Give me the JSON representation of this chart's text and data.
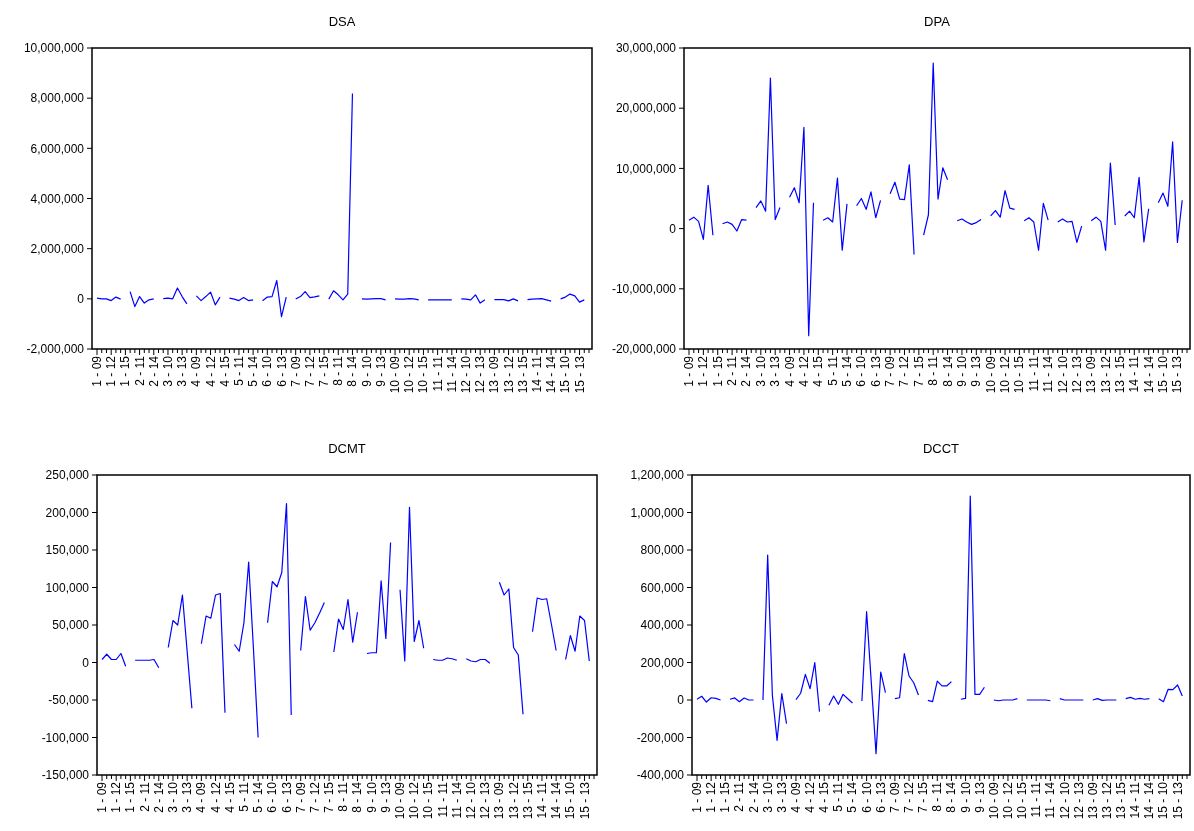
{
  "chart_data": [
    {
      "type": "line",
      "title": "DSA",
      "categories": [
        "1 - 09",
        null,
        null,
        "1 - 12",
        null,
        null,
        "1 - 15",
        null,
        null,
        "2 - 11",
        null,
        null,
        "2 - 14",
        null,
        null,
        "3 - 10",
        null,
        null,
        "3 - 13",
        null,
        null,
        "4 - 09",
        null,
        null,
        "4 - 12",
        null,
        null,
        "4 - 15",
        null,
        null,
        "5 - 11",
        null,
        null,
        "5 - 14",
        null,
        null,
        "6 - 10",
        null,
        null,
        "6 - 13",
        null,
        null,
        "7 - 09",
        null,
        null,
        "7 - 12",
        null,
        null,
        "7 - 15",
        null,
        null,
        "8 - 11",
        null,
        null,
        "8 - 14",
        null,
        null,
        "9 - 10",
        null,
        null,
        "9 - 13",
        null,
        null,
        "10 - 09",
        null,
        null,
        "10 - 12",
        null,
        null,
        "10 - 15",
        null,
        null,
        "11 - 11",
        null,
        null,
        "11 - 14",
        null,
        null,
        "12 - 10",
        null,
        null,
        "12 - 13",
        null,
        null,
        "13 - 09",
        null,
        null,
        "13 - 12",
        null,
        null,
        "13 - 15",
        null,
        null,
        "14 - 11",
        null,
        null,
        "14 - 14",
        null,
        null,
        "15 - 10",
        null,
        null,
        "15 - 13",
        null,
        null
      ],
      "ylim": [
        -2000000,
        10000000
      ],
      "yticks": [
        {
          "value": -2000000,
          "label": "-2,000,000"
        },
        {
          "value": 0,
          "label": "0"
        },
        {
          "value": 2000000,
          "label": "2,000,000"
        },
        {
          "value": 4000000,
          "label": "4,000,000"
        },
        {
          "value": 6000000,
          "label": "6,000,000"
        },
        {
          "value": 8000000,
          "label": "8,000,000"
        },
        {
          "value": 10000000,
          "label": "10,000,000"
        }
      ],
      "series": [
        {
          "color": "#0000ff",
          "values": [
            30000,
            0,
            0,
            -70000,
            70000,
            -10000,
            null,
            290000,
            -310000,
            90000,
            -170000,
            -40000,
            0,
            null,
            10000,
            30000,
            0,
            430000,
            90000,
            -200000,
            null,
            120000,
            -70000,
            90000,
            270000,
            -240000,
            70000,
            null,
            30000,
            -10000,
            -70000,
            50000,
            -70000,
            -40000,
            null,
            -80000,
            70000,
            90000,
            730000,
            -710000,
            70000,
            null,
            -10000,
            90000,
            290000,
            50000,
            80000,
            120000,
            null,
            -10000,
            320000,
            160000,
            -40000,
            190000,
            8190000,
            null,
            0,
            -10000,
            0,
            10000,
            10000,
            -40000,
            null,
            0,
            -10000,
            -10000,
            10000,
            0,
            -40000,
            null,
            -40000,
            -40000,
            -40000,
            -40000,
            -40000,
            -40000,
            null,
            0,
            -10000,
            -40000,
            160000,
            -170000,
            -40000,
            null,
            -30000,
            -30000,
            -30000,
            -80000,
            0,
            -80000,
            null,
            -30000,
            -10000,
            0,
            10000,
            -40000,
            -90000,
            null,
            0,
            70000,
            190000,
            120000,
            -130000,
            -40000,
            null
          ]
        }
      ]
    },
    {
      "type": "line",
      "title": "DPA",
      "categories": [
        "1 - 09",
        null,
        null,
        "1 - 12",
        null,
        null,
        "1 - 15",
        null,
        null,
        "2 - 11",
        null,
        null,
        "2 - 14",
        null,
        null,
        "3 - 10",
        null,
        null,
        "3 - 13",
        null,
        null,
        "4 - 09",
        null,
        null,
        "4 - 12",
        null,
        null,
        "4 - 15",
        null,
        null,
        "5 - 11",
        null,
        null,
        "5 - 14",
        null,
        null,
        "6 - 10",
        null,
        null,
        "6 - 13",
        null,
        null,
        "7 - 09",
        null,
        null,
        "7 - 12",
        null,
        null,
        "7 - 15",
        null,
        null,
        "8 - 11",
        null,
        null,
        "8 - 14",
        null,
        null,
        "9 - 10",
        null,
        null,
        "9 - 13",
        null,
        null,
        "10 - 09",
        null,
        null,
        "10 - 12",
        null,
        null,
        "10 - 15",
        null,
        null,
        "11 - 11",
        null,
        null,
        "11 - 14",
        null,
        null,
        "12 - 10",
        null,
        null,
        "12 - 13",
        null,
        null,
        "13 - 09",
        null,
        null,
        "13 - 12",
        null,
        null,
        "13 - 15",
        null,
        null,
        "14 - 11",
        null,
        null,
        "14 - 14",
        null,
        null,
        "15 - 10",
        null,
        null,
        "15 - 13",
        null,
        null
      ],
      "ylim": [
        -20000000,
        30000000
      ],
      "yticks": [
        {
          "value": -20000000,
          "label": "-20,000,000"
        },
        {
          "value": -10000000,
          "label": "-10,000,000"
        },
        {
          "value": 0,
          "label": "0"
        },
        {
          "value": 10000000,
          "label": "10,000,000"
        },
        {
          "value": 20000000,
          "label": "20,000,000"
        },
        {
          "value": 30000000,
          "label": "30,000,000"
        }
      ],
      "series": [
        {
          "color": "#0000ff",
          "values": [
            1400000,
            1900000,
            1200000,
            -1800000,
            7200000,
            -1100000,
            null,
            800000,
            1100000,
            700000,
            -400000,
            1500000,
            1400000,
            null,
            3500000,
            4600000,
            2900000,
            25000000,
            1500000,
            3500000,
            null,
            5200000,
            6800000,
            4300000,
            16800000,
            -17800000,
            4300000,
            null,
            1400000,
            1800000,
            1100000,
            8400000,
            -3600000,
            4100000,
            null,
            3800000,
            5000000,
            3200000,
            6100000,
            1800000,
            4700000,
            null,
            5800000,
            7700000,
            4900000,
            4800000,
            10600000,
            -4300000,
            null,
            -1100000,
            2300000,
            27500000,
            4900000,
            10100000,
            8100000,
            null,
            1300000,
            1600000,
            1100000,
            700000,
            1000000,
            1500000,
            null,
            2100000,
            3000000,
            1900000,
            6300000,
            3400000,
            3200000,
            null,
            1300000,
            1800000,
            1100000,
            -3600000,
            4200000,
            1400000,
            null,
            1100000,
            1600000,
            1100000,
            1200000,
            -2300000,
            400000,
            null,
            1300000,
            1900000,
            1200000,
            -3600000,
            10900000,
            600000,
            null,
            2100000,
            2900000,
            1800000,
            8500000,
            -2200000,
            3300000,
            null,
            4300000,
            5900000,
            3700000,
            14400000,
            -2300000,
            4700000,
            null
          ]
        }
      ]
    },
    {
      "type": "line",
      "title": "DCMT",
      "categories": [
        "1 - 09",
        null,
        null,
        "1 - 12",
        null,
        null,
        "1 - 15",
        null,
        null,
        "2 - 11",
        null,
        null,
        "2 - 14",
        null,
        null,
        "3 - 10",
        null,
        null,
        "3 - 13",
        null,
        null,
        "4 - 09",
        null,
        null,
        "4 - 12",
        null,
        null,
        "4 - 15",
        null,
        null,
        "5 - 11",
        null,
        null,
        "5 - 14",
        null,
        null,
        "6 - 10",
        null,
        null,
        "6 - 13",
        null,
        null,
        "7 - 09",
        null,
        null,
        "7 - 12",
        null,
        null,
        "7 - 15",
        null,
        null,
        "8 - 11",
        null,
        null,
        "8 - 14",
        null,
        null,
        "9 - 10",
        null,
        null,
        "9 - 13",
        null,
        null,
        "10 - 09",
        null,
        null,
        "10 - 12",
        null,
        null,
        "10 - 15",
        null,
        null,
        "11 - 11",
        null,
        null,
        "11 - 14",
        null,
        null,
        "12 - 10",
        null,
        null,
        "12 - 13",
        null,
        null,
        "13 - 09",
        null,
        null,
        "13 - 12",
        null,
        null,
        "13 - 15",
        null,
        null,
        "14 - 11",
        null,
        null,
        "14 - 14",
        null,
        null,
        "15 - 10",
        null,
        null,
        "15 - 13",
        null,
        null
      ],
      "ylim": [
        -150000,
        250000
      ],
      "yticks": [
        {
          "value": -150000,
          "label": "-150,000"
        },
        {
          "value": -100000,
          "label": "-100,000"
        },
        {
          "value": -50000,
          "label": "-50,000"
        },
        {
          "value": 0,
          "label": "0"
        },
        {
          "value": 50000,
          "label": "50,000"
        },
        {
          "value": 100000,
          "label": "100,000"
        },
        {
          "value": 150000,
          "label": "150,000"
        },
        {
          "value": 200000,
          "label": "200,000"
        },
        {
          "value": 250000,
          "label": "250,000"
        }
      ],
      "series": [
        {
          "color": "#0000ff",
          "values": [
            4000,
            11000,
            4000,
            4000,
            12000,
            -5000,
            null,
            3000,
            3000,
            3000,
            3000,
            4000,
            -7000,
            null,
            20000,
            56000,
            50000,
            90000,
            15000,
            -61000,
            null,
            25000,
            62000,
            59000,
            90000,
            92000,
            -67000,
            null,
            24000,
            15000,
            53000,
            134000,
            20000,
            -100000,
            null,
            53000,
            108000,
            101000,
            120000,
            212000,
            -70000,
            null,
            16000,
            88000,
            43000,
            53000,
            66000,
            80000,
            null,
            14000,
            58000,
            44000,
            84000,
            27000,
            67000,
            null,
            12000,
            13000,
            13000,
            109000,
            32000,
            160000,
            null,
            97000,
            2000,
            207000,
            28000,
            56000,
            19000,
            null,
            4000,
            3000,
            3000,
            6000,
            5000,
            3000,
            null,
            5000,
            2000,
            1000,
            4000,
            4000,
            -1000,
            null,
            107000,
            90000,
            98000,
            20000,
            10000,
            -69000,
            null,
            41000,
            86000,
            84000,
            85000,
            51000,
            16000,
            null,
            4000,
            36000,
            15000,
            62000,
            56000,
            2000,
            null
          ]
        }
      ]
    },
    {
      "type": "line",
      "title": "DCCT",
      "categories": [
        "1 - 09",
        null,
        null,
        "1 - 12",
        null,
        null,
        "1 - 15",
        null,
        null,
        "2 - 11",
        null,
        null,
        "2 - 14",
        null,
        null,
        "3 - 10",
        null,
        null,
        "3 - 13",
        null,
        null,
        "4 - 09",
        null,
        null,
        "4 - 12",
        null,
        null,
        "4 - 15",
        null,
        null,
        "5 - 11",
        null,
        null,
        "5 - 14",
        null,
        null,
        "6 - 10",
        null,
        null,
        "6 - 13",
        null,
        null,
        "7 - 09",
        null,
        null,
        "7 - 12",
        null,
        null,
        "7 - 15",
        null,
        null,
        "8 - 11",
        null,
        null,
        "8 - 14",
        null,
        null,
        "9 - 10",
        null,
        null,
        "9 - 13",
        null,
        null,
        "10 - 09",
        null,
        null,
        "10 - 12",
        null,
        null,
        "10 - 15",
        null,
        null,
        "11 - 11",
        null,
        null,
        "11 - 14",
        null,
        null,
        "12 - 10",
        null,
        null,
        "12 - 13",
        null,
        null,
        "13 - 09",
        null,
        null,
        "13 - 12",
        null,
        null,
        "13 - 15",
        null,
        null,
        "14 - 11",
        null,
        null,
        "14 - 14",
        null,
        null,
        "15 - 10",
        null,
        null,
        "15 - 13",
        null,
        null
      ],
      "ylim": [
        -400000,
        1200000
      ],
      "yticks": [
        {
          "value": -400000,
          "label": "-400,000"
        },
        {
          "value": -200000,
          "label": "-200,000"
        },
        {
          "value": 0,
          "label": "0"
        },
        {
          "value": 200000,
          "label": "200,000"
        },
        {
          "value": 400000,
          "label": "400,000"
        },
        {
          "value": 600000,
          "label": "600,000"
        },
        {
          "value": 800000,
          "label": "800,000"
        },
        {
          "value": 1000000,
          "label": "1,000,000"
        },
        {
          "value": 1200000,
          "label": "1,200,000"
        }
      ],
      "series": [
        {
          "color": "#0000ff",
          "values": [
            4000,
            20000,
            -11000,
            12000,
            9000,
            0,
            null,
            4000,
            11000,
            -9000,
            11000,
            0,
            0,
            null,
            0,
            773000,
            25000,
            -215000,
            34000,
            -126000,
            null,
            2000,
            36000,
            137000,
            60000,
            199000,
            -62000,
            null,
            -28000,
            21000,
            -23000,
            30000,
            7000,
            -16000,
            null,
            -5000,
            471000,
            90000,
            -286000,
            149000,
            39000,
            null,
            7000,
            12000,
            247000,
            128000,
            92000,
            27000,
            null,
            -2000,
            -9000,
            101000,
            75000,
            75000,
            98000,
            null,
            4000,
            9000,
            1088000,
            30000,
            30000,
            68000,
            null,
            0,
            -4000,
            0,
            0,
            0,
            7000,
            null,
            0,
            0,
            0,
            0,
            0,
            -4000,
            null,
            7000,
            0,
            0,
            0,
            0,
            0,
            null,
            0,
            7000,
            -2000,
            0,
            0,
            0,
            null,
            7000,
            14000,
            4000,
            9000,
            4000,
            7000,
            null,
            7000,
            -9000,
            57000,
            55000,
            80000,
            21000,
            null
          ]
        }
      ]
    }
  ]
}
